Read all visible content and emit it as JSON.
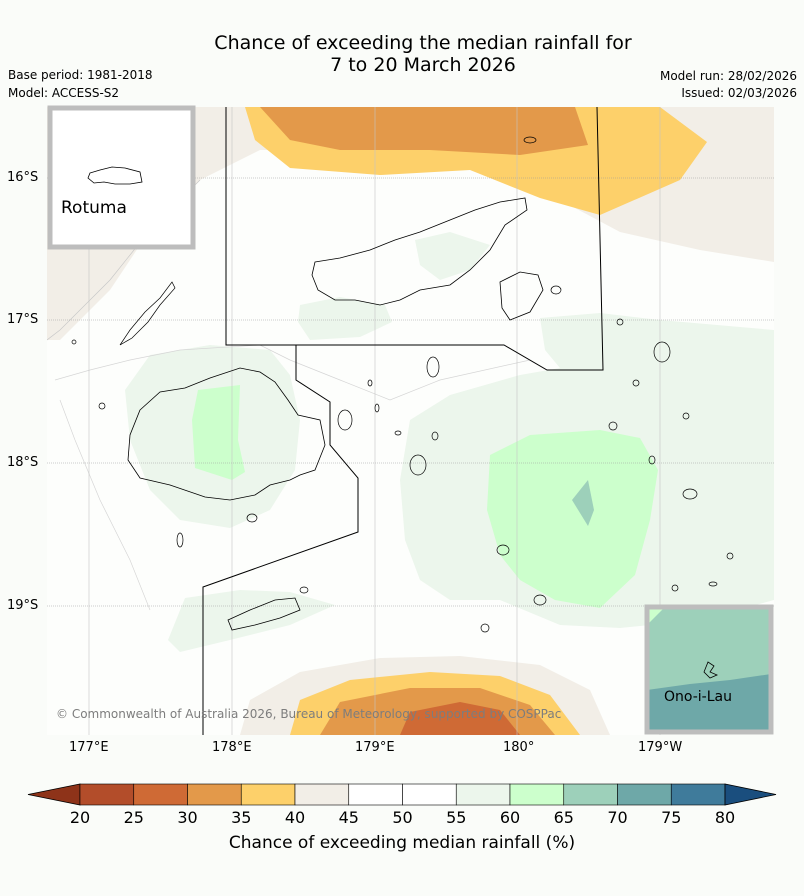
{
  "title_line1": "Chance of exceeding the median rainfall for",
  "title_line2": "7 to 20 March 2026",
  "base_period": "Base period: 1981-2018",
  "model": "Model: ACCESS-S2",
  "model_run": "Model run: 28/02/2026",
  "issued": "Issued: 02/03/2026",
  "lat_labels": [
    "16°S",
    "17°S",
    "18°S",
    "19°S"
  ],
  "lon_labels": [
    "177°E",
    "178°E",
    "179°E",
    "180°",
    "179°W"
  ],
  "inset_rotuma": "Rotuma",
  "inset_onoilau": "Ono-i-Lau",
  "copyright": "© Commonwealth of Australia 2026, Bureau of Meteorology, supported by COSPPac",
  "colorbar": {
    "label": "Chance of exceeding median rainfall (%)",
    "ticks": [
      "20",
      "25",
      "30",
      "35",
      "40",
      "45",
      "50",
      "55",
      "60",
      "65",
      "70",
      "75",
      "80"
    ],
    "colors": [
      "#8e3319",
      "#b34d2a",
      "#cf6a35",
      "#e3994a",
      "#fdd06a",
      "#f2eee7",
      "#ffffff",
      "#ffffff",
      "#ecf6ec",
      "#ccffcc",
      "#9dd0ba",
      "#6ea8a8",
      "#3f7b9b",
      "#1a4e7e"
    ]
  }
}
